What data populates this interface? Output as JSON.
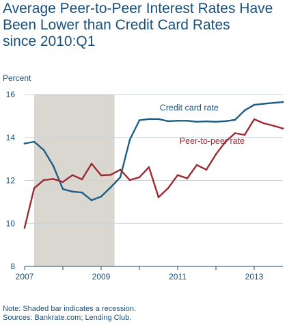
{
  "title": "Average Peer-to-Peer Interest Rates Have\nBeen Lower than Credit Card Rates\nsince 2010:Q1",
  "note": "Note: Shaded bar indicates a recession.",
  "sources": "Sources: Bankrate.com; Lending Club.",
  "colors": {
    "credit_card": "#1c5d86",
    "peer_to_peer": "#9b2a33",
    "recession": "#d9d7d0",
    "axis": "#1a4f7a",
    "grid": "#c9d3dc"
  },
  "chart_data": {
    "type": "line",
    "title": "Average Peer-to-Peer Interest Rates Have Been Lower than Credit Card Rates since 2010:Q1",
    "ylabel": "Percent",
    "xlabel": "",
    "xlim": [
      2007.0,
      2013.75
    ],
    "ylim": [
      8,
      16
    ],
    "yticks": [
      8,
      10,
      12,
      14,
      16
    ],
    "xticks": [
      2007,
      2009,
      2011,
      2013
    ],
    "grid": true,
    "recession": [
      2007.25,
      2009.35
    ],
    "series": [
      {
        "name": "Credit card rate",
        "key": "credit_card",
        "x": [
          2007.0,
          2007.25,
          2007.5,
          2007.75,
          2008.0,
          2008.25,
          2008.5,
          2008.75,
          2009.0,
          2009.25,
          2009.5,
          2009.75,
          2010.0,
          2010.25,
          2010.5,
          2010.75,
          2011.0,
          2011.25,
          2011.5,
          2011.75,
          2012.0,
          2012.25,
          2012.5,
          2012.75,
          2013.0,
          2013.25,
          2013.5,
          2013.75
        ],
        "values": [
          13.72,
          13.8,
          13.42,
          12.68,
          11.6,
          11.48,
          11.44,
          11.08,
          11.25,
          11.68,
          12.15,
          13.9,
          14.8,
          14.86,
          14.86,
          14.76,
          14.78,
          14.78,
          14.73,
          14.75,
          14.73,
          14.76,
          14.82,
          15.26,
          15.52,
          15.57,
          15.61,
          15.65
        ]
      },
      {
        "name": "Peer-to-peer rate",
        "key": "peer_to_peer",
        "x": [
          2007.0,
          2007.25,
          2007.5,
          2007.75,
          2008.0,
          2008.25,
          2008.5,
          2008.75,
          2009.0,
          2009.25,
          2009.5,
          2009.75,
          2010.0,
          2010.25,
          2010.5,
          2010.75,
          2011.0,
          2011.25,
          2011.5,
          2011.75,
          2012.0,
          2012.25,
          2012.5,
          2012.75,
          2013.0,
          2013.25,
          2013.5,
          2013.75
        ],
        "values": [
          9.8,
          11.64,
          12.02,
          12.07,
          11.93,
          12.25,
          12.05,
          12.78,
          12.24,
          12.26,
          12.5,
          12.02,
          12.15,
          12.62,
          11.22,
          11.64,
          12.25,
          12.1,
          12.72,
          12.5,
          13.22,
          13.8,
          14.2,
          14.12,
          14.85,
          14.66,
          14.55,
          14.42
        ]
      }
    ],
    "annotations": [
      {
        "text": "Credit card rate",
        "series": "credit_card",
        "at": [
          2011.3,
          15.25
        ]
      },
      {
        "text": "Peer-to-peer rate",
        "series": "peer_to_peer",
        "at": [
          2011.9,
          13.7
        ]
      }
    ]
  }
}
